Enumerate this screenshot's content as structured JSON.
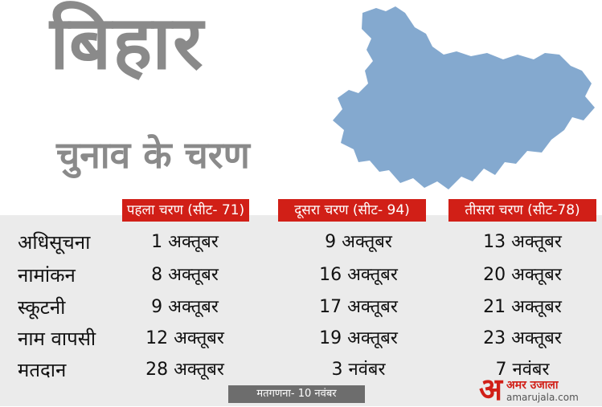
{
  "title": "बिहार",
  "subtitle": "चुनाव के चरण",
  "map": {
    "icon": "bihar-map-icon",
    "color": "#84a9cf"
  },
  "phases": [
    {
      "label": "पहला चरण (सीट- 71)"
    },
    {
      "label": "दूसरा चरण (सीट- 94)"
    },
    {
      "label": "तीसरा चरण (सीट-78)"
    }
  ],
  "colors": {
    "header_red": "#d11f17",
    "table_bg": "#ebebeb",
    "title_gray": "#8a8a8a",
    "footer_gray": "#6d6d6d"
  },
  "rows": [
    {
      "label": "अधिसूचना",
      "values": [
        "1 अक्तूबर",
        "9 अक्तूबर",
        "13 अक्तूबर"
      ]
    },
    {
      "label": "नामांकन",
      "values": [
        "8 अक्तूबर",
        "16 अक्तूबर",
        "20 अक्तूबर"
      ]
    },
    {
      "label": "स्कूटनी",
      "values": [
        "9 अक्तूबर",
        "17 अक्तूबर",
        "21 अक्तूबर"
      ]
    },
    {
      "label": "नाम वापसी",
      "values": [
        "12 अक्तूबर",
        "19 अक्तूबर",
        "23 अक्तूबर"
      ]
    },
    {
      "label": "मतदान",
      "values": [
        "28 अक्तूबर",
        "3 नवंबर",
        "7 नवंबर"
      ]
    }
  ],
  "footer": "मतगणना- 10 नवंबर",
  "logo": {
    "mark": "अ",
    "name": "अमर उजाला",
    "site": "amarujala.com"
  }
}
